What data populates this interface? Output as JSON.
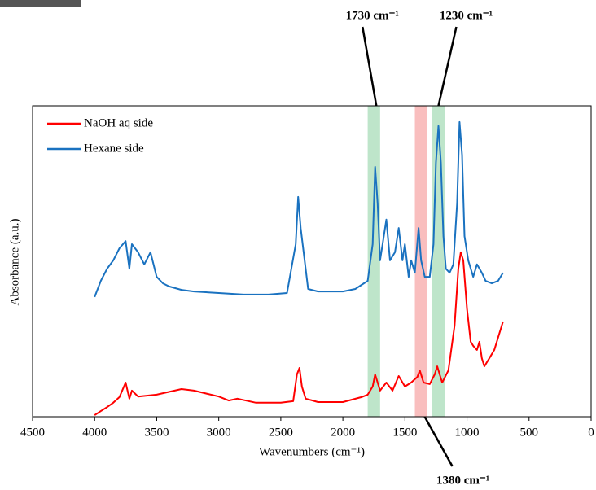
{
  "chart_data": {
    "type": "line",
    "xlabel": "Wavenumbers (cm⁻¹)",
    "ylabel": "Absorbance (a.u.)",
    "xlim": [
      4500,
      0
    ],
    "xticks": [
      4500,
      4000,
      3500,
      3000,
      2500,
      2000,
      1500,
      1000,
      500,
      0
    ],
    "ylim": [
      0,
      1
    ],
    "legend": "upper left",
    "bands": [
      {
        "from": 1800,
        "to": 1700,
        "color": "#a8dcb8"
      },
      {
        "from": 1420,
        "to": 1325,
        "color": "#f7a8a8"
      },
      {
        "from": 1280,
        "to": 1180,
        "color": "#a8dcb8"
      }
    ],
    "annotations": [
      {
        "text": "1730 cm⁻¹",
        "x": 1730,
        "position": "top"
      },
      {
        "text": "1230 cm⁻¹",
        "x": 1230,
        "position": "top"
      },
      {
        "text": "1380 cm⁻¹",
        "x": 1380,
        "position": "bottom"
      }
    ],
    "series": [
      {
        "name": "NaOH aq side",
        "color": "#ff0000",
        "x": [
          4000,
          3950,
          3900,
          3850,
          3800,
          3750,
          3720,
          3700,
          3650,
          3500,
          3300,
          3200,
          3000,
          2920,
          2850,
          2700,
          2500,
          2400,
          2370,
          2350,
          2330,
          2300,
          2200,
          2000,
          1850,
          1800,
          1760,
          1740,
          1720,
          1700,
          1650,
          1600,
          1550,
          1500,
          1450,
          1400,
          1380,
          1350,
          1300,
          1260,
          1240,
          1220,
          1200,
          1150,
          1100,
          1070,
          1050,
          1030,
          1000,
          970,
          950,
          920,
          900,
          880,
          860,
          820,
          780,
          740,
          710
        ],
        "values": [
          0.005,
          0.018,
          0.031,
          0.045,
          0.063,
          0.11,
          0.058,
          0.084,
          0.065,
          0.071,
          0.089,
          0.084,
          0.065,
          0.052,
          0.058,
          0.045,
          0.045,
          0.05,
          0.136,
          0.157,
          0.097,
          0.058,
          0.047,
          0.047,
          0.063,
          0.071,
          0.097,
          0.136,
          0.11,
          0.084,
          0.11,
          0.084,
          0.131,
          0.097,
          0.11,
          0.128,
          0.149,
          0.11,
          0.105,
          0.136,
          0.162,
          0.136,
          0.11,
          0.149,
          0.293,
          0.476,
          0.529,
          0.503,
          0.346,
          0.241,
          0.228,
          0.215,
          0.241,
          0.188,
          0.162,
          0.188,
          0.215,
          0.267,
          0.306
        ]
      },
      {
        "name": "Hexane side",
        "color": "#1a72c0",
        "x": [
          4000,
          3950,
          3900,
          3850,
          3800,
          3750,
          3720,
          3700,
          3650,
          3600,
          3550,
          3500,
          3450,
          3400,
          3300,
          3200,
          3000,
          2800,
          2600,
          2450,
          2380,
          2360,
          2340,
          2300,
          2280,
          2200,
          2000,
          1900,
          1850,
          1800,
          1760,
          1740,
          1720,
          1700,
          1680,
          1650,
          1620,
          1580,
          1550,
          1520,
          1500,
          1470,
          1450,
          1420,
          1390,
          1370,
          1340,
          1300,
          1270,
          1250,
          1230,
          1210,
          1190,
          1170,
          1140,
          1110,
          1080,
          1060,
          1040,
          1020,
          990,
          950,
          920,
          880,
          850,
          800,
          750,
          710
        ],
        "values": [
          0.385,
          0.437,
          0.476,
          0.503,
          0.542,
          0.565,
          0.476,
          0.555,
          0.529,
          0.49,
          0.529,
          0.45,
          0.429,
          0.419,
          0.408,
          0.403,
          0.398,
          0.393,
          0.393,
          0.398,
          0.555,
          0.707,
          0.607,
          0.476,
          0.411,
          0.403,
          0.403,
          0.411,
          0.424,
          0.437,
          0.555,
          0.804,
          0.686,
          0.503,
          0.555,
          0.634,
          0.503,
          0.529,
          0.607,
          0.503,
          0.555,
          0.45,
          0.503,
          0.463,
          0.607,
          0.503,
          0.45,
          0.45,
          0.555,
          0.817,
          0.935,
          0.817,
          0.581,
          0.476,
          0.463,
          0.49,
          0.686,
          0.948,
          0.843,
          0.581,
          0.503,
          0.45,
          0.49,
          0.463,
          0.437,
          0.429,
          0.437,
          0.463
        ]
      }
    ]
  }
}
